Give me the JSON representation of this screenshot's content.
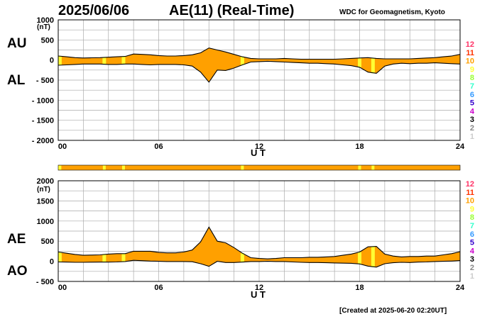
{
  "header": {
    "date": "2025/06/06",
    "title": "AE(11) (Real-Time)",
    "source": "WDC for Geomagnetism, Kyoto"
  },
  "footer": {
    "created": "[Created at 2025-06-20 02:20UT]"
  },
  "colors": {
    "fill": "#ffa000",
    "line": "#000000",
    "grid": "#aaaaaa",
    "highlight": "#ffff33",
    "bar": "#ffa000"
  },
  "station_legend": [
    {
      "label": "12",
      "color": "#ff3366"
    },
    {
      "label": "11",
      "color": "#ff3300"
    },
    {
      "label": "10",
      "color": "#ffa000"
    },
    {
      "label": "9",
      "color": "#ffff33"
    },
    {
      "label": "8",
      "color": "#99ff33"
    },
    {
      "label": "7",
      "color": "#33ffcc"
    },
    {
      "label": "6",
      "color": "#3399ff"
    },
    {
      "label": "5",
      "color": "#3300cc"
    },
    {
      "label": "4",
      "color": "#cc00cc"
    },
    {
      "label": "3",
      "color": "#000000"
    },
    {
      "label": "2",
      "color": "#888888"
    },
    {
      "label": "1",
      "color": "#cccccc"
    }
  ],
  "station_coverage": {
    "highlight_hours": [
      0.1,
      2.75,
      3.9,
      11.0,
      18.0,
      18.8
    ]
  },
  "chart_data": [
    {
      "type": "area",
      "name": "au-al",
      "series_labels": [
        "AU",
        "AL"
      ],
      "xlabel": "U T",
      "ylabel": "(nT)",
      "xlim": [
        0,
        24
      ],
      "ylim": [
        -2000,
        1000
      ],
      "xticks": [
        "00",
        "06",
        "12",
        "18",
        "24"
      ],
      "yticks": [
        "1000",
        "500",
        "0",
        "- 500",
        "- 1000",
        "- 1500",
        "- 2000"
      ],
      "ytick_values": [
        1000,
        500,
        0,
        -500,
        -1000,
        -1500,
        -2000
      ],
      "x": [
        0,
        0.5,
        1,
        1.5,
        2,
        2.5,
        3,
        3.5,
        4,
        4.5,
        5,
        5.5,
        6,
        6.5,
        7,
        7.5,
        8,
        8.5,
        9,
        9.5,
        10,
        10.5,
        11,
        11.5,
        12,
        12.5,
        13,
        13.5,
        14,
        14.5,
        15,
        15.5,
        16,
        16.5,
        17,
        17.5,
        18,
        18.5,
        19,
        19.5,
        20,
        20.5,
        21,
        21.5,
        22,
        22.5,
        23,
        23.5,
        24
      ],
      "series": [
        {
          "name": "AU",
          "values": [
            100,
            80,
            60,
            50,
            55,
            60,
            70,
            80,
            90,
            150,
            140,
            130,
            110,
            100,
            100,
            110,
            130,
            180,
            300,
            250,
            200,
            140,
            80,
            40,
            30,
            30,
            30,
            40,
            30,
            20,
            20,
            20,
            20,
            20,
            30,
            40,
            50,
            60,
            40,
            30,
            30,
            30,
            30,
            40,
            50,
            60,
            80,
            100,
            140
          ]
        },
        {
          "name": "AL",
          "values": [
            -130,
            -120,
            -110,
            -100,
            -100,
            -100,
            -110,
            -110,
            -100,
            -100,
            -110,
            -120,
            -110,
            -110,
            -110,
            -120,
            -150,
            -300,
            -550,
            -250,
            -260,
            -200,
            -120,
            -50,
            -40,
            -30,
            -40,
            -50,
            -60,
            -70,
            -80,
            -80,
            -90,
            -100,
            -120,
            -140,
            -180,
            -300,
            -330,
            -150,
            -100,
            -80,
            -90,
            -80,
            -80,
            -70,
            -80,
            -90,
            -100
          ]
        }
      ]
    },
    {
      "type": "area",
      "name": "ae-ao",
      "series_labels": [
        "AE",
        "AO"
      ],
      "xlabel": "U T",
      "ylabel": "(nT)",
      "xlim": [
        0,
        24
      ],
      "ylim": [
        -500,
        2000
      ],
      "xticks": [
        "00",
        "06",
        "12",
        "18",
        "24"
      ],
      "yticks": [
        "2000",
        "1500",
        "1000",
        "500",
        "0",
        "- 500"
      ],
      "ytick_values": [
        2000,
        1500,
        1000,
        500,
        0,
        -500
      ],
      "x": [
        0,
        0.5,
        1,
        1.5,
        2,
        2.5,
        3,
        3.5,
        4,
        4.5,
        5,
        5.5,
        6,
        6.5,
        7,
        7.5,
        8,
        8.5,
        9,
        9.5,
        10,
        10.5,
        11,
        11.5,
        12,
        12.5,
        13,
        13.5,
        14,
        14.5,
        15,
        15.5,
        16,
        16.5,
        17,
        17.5,
        18,
        18.5,
        19,
        19.5,
        20,
        20.5,
        21,
        21.5,
        22,
        22.5,
        23,
        23.5,
        24
      ],
      "series": [
        {
          "name": "AE",
          "values": [
            230,
            200,
            170,
            150,
            155,
            160,
            180,
            190,
            190,
            250,
            250,
            250,
            220,
            210,
            210,
            230,
            280,
            480,
            850,
            500,
            460,
            340,
            200,
            90,
            70,
            60,
            70,
            90,
            90,
            90,
            100,
            100,
            110,
            120,
            150,
            180,
            230,
            360,
            370,
            180,
            130,
            110,
            120,
            120,
            130,
            130,
            160,
            190,
            240
          ]
        },
        {
          "name": "AO",
          "values": [
            -15,
            -20,
            -25,
            -25,
            -22,
            -20,
            -20,
            -15,
            -5,
            25,
            15,
            5,
            0,
            -5,
            -5,
            -5,
            -10,
            -60,
            -125,
            0,
            -30,
            -30,
            -20,
            -5,
            -5,
            0,
            -5,
            -5,
            -15,
            -25,
            -30,
            -30,
            -35,
            -40,
            -45,
            -50,
            -65,
            -120,
            -145,
            -60,
            -35,
            -25,
            -30,
            -20,
            -15,
            -5,
            0,
            5,
            20
          ]
        }
      ]
    }
  ]
}
